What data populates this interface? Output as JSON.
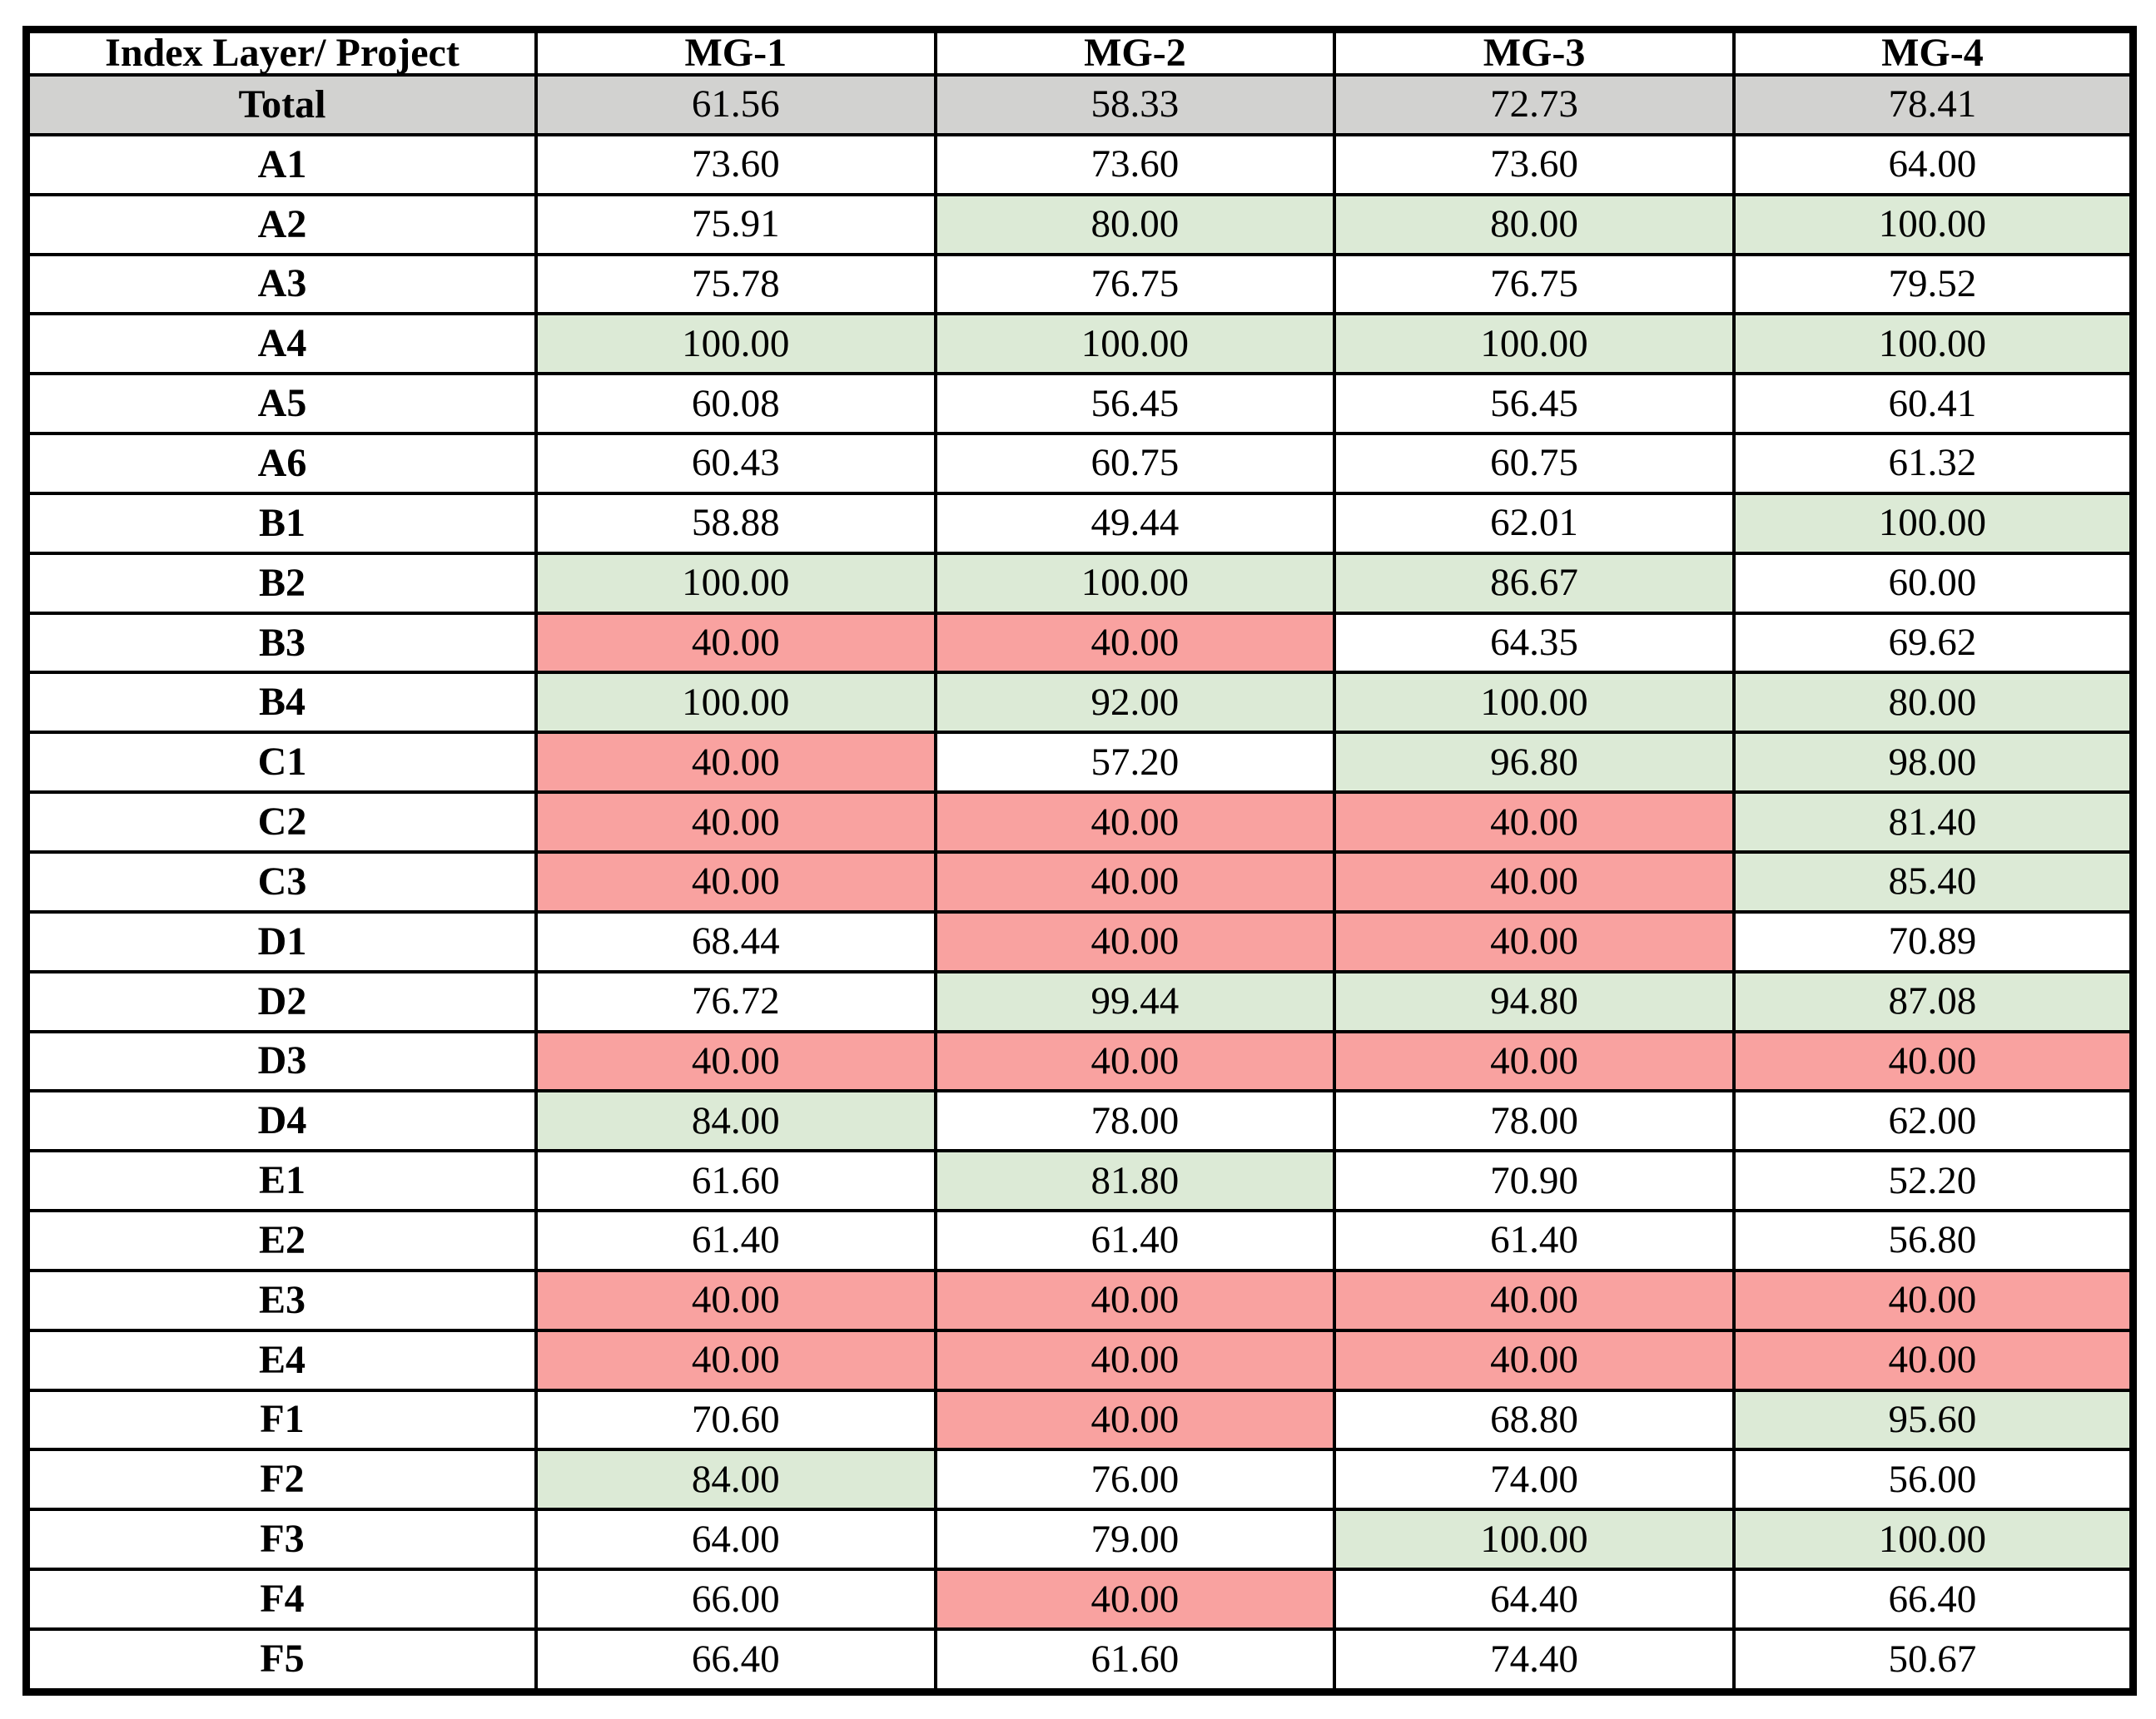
{
  "colors": {
    "green": "#dcead6",
    "red": "#f9a2a0",
    "gray": "#d2d2d0",
    "white": "#ffffff",
    "border": "#000000",
    "text": "#000000"
  },
  "chart_data": {
    "type": "table",
    "title": "",
    "corner_label": "Index Layer/ Project",
    "columns": [
      "MG-1",
      "MG-2",
      "MG-3",
      "MG-4"
    ],
    "fill_legend": {
      "gray": "total summary row",
      "green": "highlighted high score cell",
      "red": "highlighted low score cell",
      "white": "plain cell"
    },
    "rows": [
      {
        "label": "Total",
        "label_fill": "gray",
        "values": [
          "61.56",
          "58.33",
          "72.73",
          "78.41"
        ],
        "fills": [
          "gray",
          "gray",
          "gray",
          "gray"
        ]
      },
      {
        "label": "A1",
        "label_fill": "white",
        "values": [
          "73.60",
          "73.60",
          "73.60",
          "64.00"
        ],
        "fills": [
          "white",
          "white",
          "white",
          "white"
        ]
      },
      {
        "label": "A2",
        "label_fill": "white",
        "values": [
          "75.91",
          "80.00",
          "80.00",
          "100.00"
        ],
        "fills": [
          "white",
          "green",
          "green",
          "green"
        ]
      },
      {
        "label": "A3",
        "label_fill": "white",
        "values": [
          "75.78",
          "76.75",
          "76.75",
          "79.52"
        ],
        "fills": [
          "white",
          "white",
          "white",
          "white"
        ]
      },
      {
        "label": "A4",
        "label_fill": "white",
        "values": [
          "100.00",
          "100.00",
          "100.00",
          "100.00"
        ],
        "fills": [
          "green",
          "green",
          "green",
          "green"
        ]
      },
      {
        "label": "A5",
        "label_fill": "white",
        "values": [
          "60.08",
          "56.45",
          "56.45",
          "60.41"
        ],
        "fills": [
          "white",
          "white",
          "white",
          "white"
        ]
      },
      {
        "label": "A6",
        "label_fill": "white",
        "values": [
          "60.43",
          "60.75",
          "60.75",
          "61.32"
        ],
        "fills": [
          "white",
          "white",
          "white",
          "white"
        ]
      },
      {
        "label": "B1",
        "label_fill": "white",
        "values": [
          "58.88",
          "49.44",
          "62.01",
          "100.00"
        ],
        "fills": [
          "white",
          "white",
          "white",
          "green"
        ]
      },
      {
        "label": "B2",
        "label_fill": "white",
        "values": [
          "100.00",
          "100.00",
          "86.67",
          "60.00"
        ],
        "fills": [
          "green",
          "green",
          "green",
          "white"
        ]
      },
      {
        "label": "B3",
        "label_fill": "white",
        "values": [
          "40.00",
          "40.00",
          "64.35",
          "69.62"
        ],
        "fills": [
          "red",
          "red",
          "white",
          "white"
        ]
      },
      {
        "label": "B4",
        "label_fill": "white",
        "values": [
          "100.00",
          "92.00",
          "100.00",
          "80.00"
        ],
        "fills": [
          "green",
          "green",
          "green",
          "green"
        ]
      },
      {
        "label": "C1",
        "label_fill": "white",
        "values": [
          "40.00",
          "57.20",
          "96.80",
          "98.00"
        ],
        "fills": [
          "red",
          "white",
          "green",
          "green"
        ]
      },
      {
        "label": "C2",
        "label_fill": "white",
        "values": [
          "40.00",
          "40.00",
          "40.00",
          "81.40"
        ],
        "fills": [
          "red",
          "red",
          "red",
          "green"
        ]
      },
      {
        "label": "C3",
        "label_fill": "white",
        "values": [
          "40.00",
          "40.00",
          "40.00",
          "85.40"
        ],
        "fills": [
          "red",
          "red",
          "red",
          "green"
        ]
      },
      {
        "label": "D1",
        "label_fill": "white",
        "values": [
          "68.44",
          "40.00",
          "40.00",
          "70.89"
        ],
        "fills": [
          "white",
          "red",
          "red",
          "white"
        ]
      },
      {
        "label": "D2",
        "label_fill": "white",
        "values": [
          "76.72",
          "99.44",
          "94.80",
          "87.08"
        ],
        "fills": [
          "white",
          "green",
          "green",
          "green"
        ]
      },
      {
        "label": "D3",
        "label_fill": "white",
        "values": [
          "40.00",
          "40.00",
          "40.00",
          "40.00"
        ],
        "fills": [
          "red",
          "red",
          "red",
          "red"
        ]
      },
      {
        "label": "D4",
        "label_fill": "white",
        "values": [
          "84.00",
          "78.00",
          "78.00",
          "62.00"
        ],
        "fills": [
          "green",
          "white",
          "white",
          "white"
        ]
      },
      {
        "label": "E1",
        "label_fill": "white",
        "values": [
          "61.60",
          "81.80",
          "70.90",
          "52.20"
        ],
        "fills": [
          "white",
          "green",
          "white",
          "white"
        ]
      },
      {
        "label": "E2",
        "label_fill": "white",
        "values": [
          "61.40",
          "61.40",
          "61.40",
          "56.80"
        ],
        "fills": [
          "white",
          "white",
          "white",
          "white"
        ]
      },
      {
        "label": "E3",
        "label_fill": "white",
        "values": [
          "40.00",
          "40.00",
          "40.00",
          "40.00"
        ],
        "fills": [
          "red",
          "red",
          "red",
          "red"
        ]
      },
      {
        "label": "E4",
        "label_fill": "white",
        "values": [
          "40.00",
          "40.00",
          "40.00",
          "40.00"
        ],
        "fills": [
          "red",
          "red",
          "red",
          "red"
        ]
      },
      {
        "label": "F1",
        "label_fill": "white",
        "values": [
          "70.60",
          "40.00",
          "68.80",
          "95.60"
        ],
        "fills": [
          "white",
          "red",
          "white",
          "green"
        ]
      },
      {
        "label": "F2",
        "label_fill": "white",
        "values": [
          "84.00",
          "76.00",
          "74.00",
          "56.00"
        ],
        "fills": [
          "green",
          "white",
          "white",
          "white"
        ]
      },
      {
        "label": "F3",
        "label_fill": "white",
        "values": [
          "64.00",
          "79.00",
          "100.00",
          "100.00"
        ],
        "fills": [
          "white",
          "white",
          "green",
          "green"
        ]
      },
      {
        "label": "F4",
        "label_fill": "white",
        "values": [
          "66.00",
          "40.00",
          "64.40",
          "66.40"
        ],
        "fills": [
          "white",
          "red",
          "white",
          "white"
        ]
      },
      {
        "label": "F5",
        "label_fill": "white",
        "values": [
          "66.40",
          "61.60",
          "74.40",
          "50.67"
        ],
        "fills": [
          "white",
          "white",
          "white",
          "white"
        ]
      }
    ]
  }
}
